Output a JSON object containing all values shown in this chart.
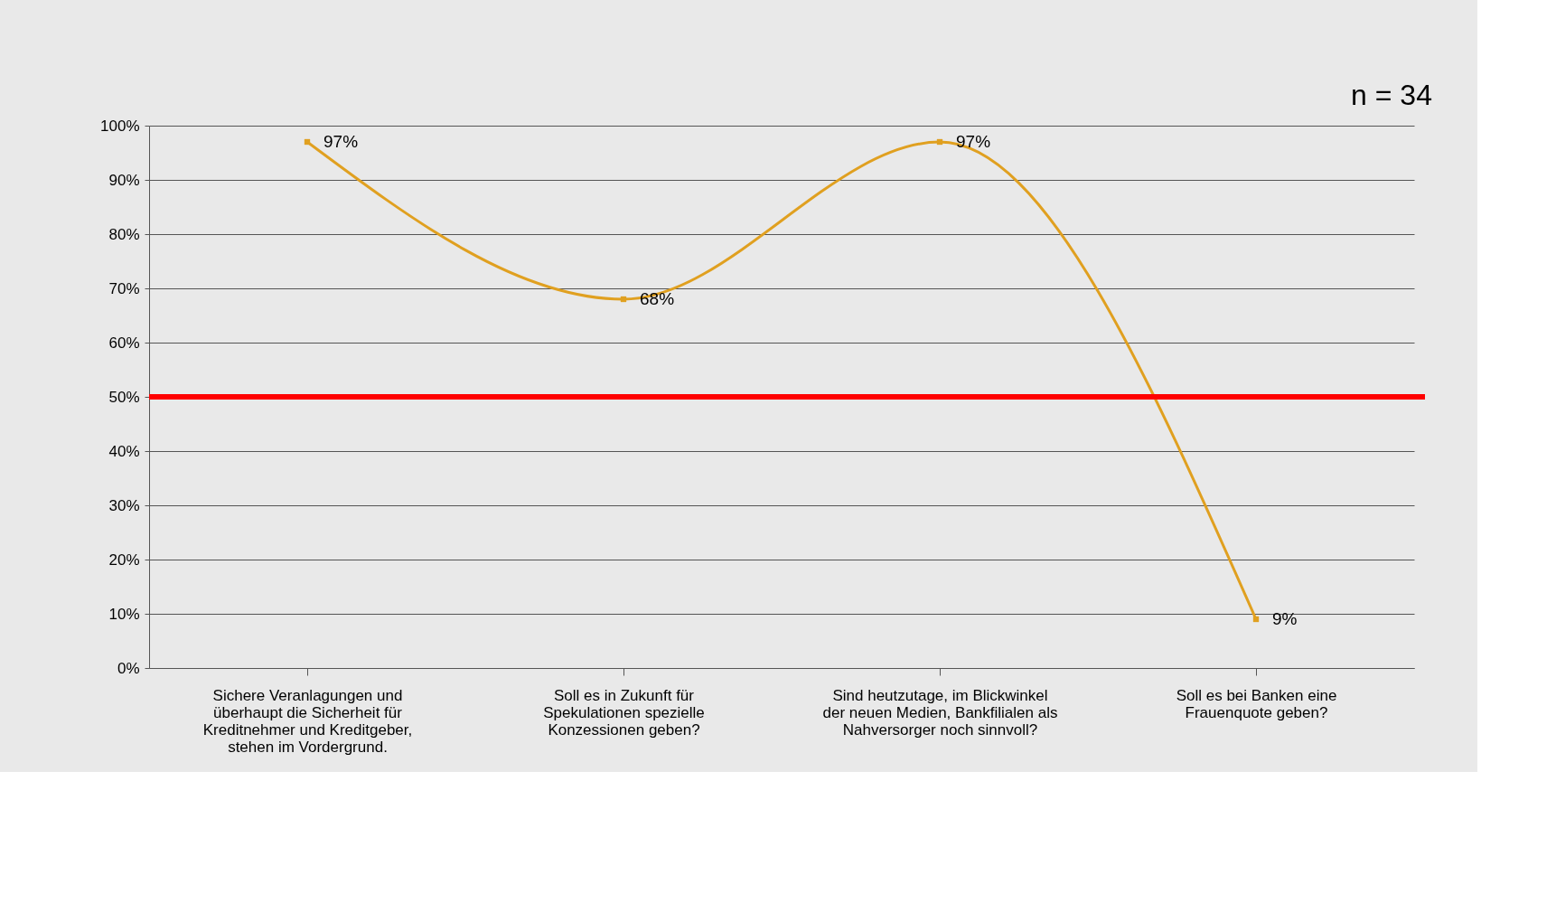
{
  "chart_data": {
    "type": "line",
    "categories": [
      "Sichere Veranlagungen und überhaupt die Sicherheit für Kreditnehmer und Kreditgeber, stehen im Vordergrund.",
      "Soll es in Zukunft für Spekulationen spezielle Konzessionen geben?",
      "Sind heutzutage, im Blickwinkel der neuen Medien, Bankfilialen als Nahversorger noch sinnvoll?",
      "Soll es bei Banken eine Frauenquote geben?"
    ],
    "series": [
      {
        "color": "#e0a020",
        "values": [
          97,
          68,
          97,
          9
        ],
        "value_labels": [
          "97%",
          "68%",
          "97%",
          "9%"
        ]
      }
    ],
    "ylim": [
      0,
      100
    ],
    "yticks": [
      {
        "value": 0,
        "label": "0%"
      },
      {
        "value": 10,
        "label": "10%"
      },
      {
        "value": 20,
        "label": "20%"
      },
      {
        "value": 30,
        "label": "30%"
      },
      {
        "value": 40,
        "label": "40%"
      },
      {
        "value": 50,
        "label": "50%"
      },
      {
        "value": 60,
        "label": "60%"
      },
      {
        "value": 70,
        "label": "70%"
      },
      {
        "value": 80,
        "label": "80%"
      },
      {
        "value": 90,
        "label": "90%"
      },
      {
        "value": 100,
        "label": "100%"
      }
    ],
    "ref_lines": [
      {
        "axis": "y",
        "value": 50,
        "color": "#ff0000"
      }
    ],
    "annotations": [
      "n = 34"
    ],
    "grid": "y",
    "marker": "square"
  }
}
